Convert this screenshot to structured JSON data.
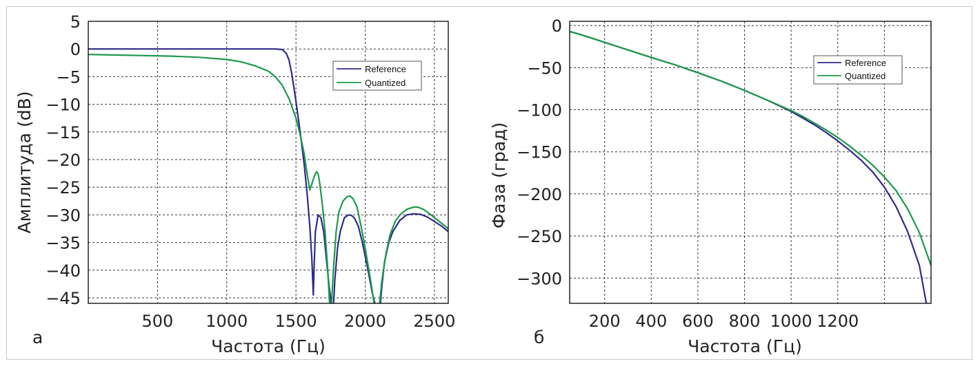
{
  "chart_data": [
    {
      "type": "line",
      "panel_label": "а",
      "xlabel": "Частота (Гц)",
      "ylabel": "Амплитуда (dB)",
      "xlim": [
        0,
        2600
      ],
      "ylim": [
        -46,
        5
      ],
      "xticks": [
        500,
        1000,
        1500,
        2000,
        2500
      ],
      "xtick_labels": [
        "500",
        "1000",
        "1500",
        "2000",
        "2500"
      ],
      "yticks": [
        5,
        0,
        -5,
        -10,
        -15,
        -20,
        -25,
        -30,
        -35,
        -40,
        -45
      ],
      "ytick_labels": [
        "5",
        "0",
        "−5",
        "−10",
        "−15",
        "−20",
        "−25",
        "−30",
        "−35",
        "−40",
        "−45"
      ],
      "grid": true,
      "legend_position": "top-right",
      "series": [
        {
          "name": "Reference",
          "color": "#2e2a8a",
          "x": [
            0,
            200,
            400,
            600,
            800,
            1000,
            1200,
            1350,
            1400,
            1430,
            1450,
            1470,
            1500,
            1530,
            1560,
            1580,
            1600,
            1615,
            1625,
            1630,
            1640,
            1660,
            1680,
            1700,
            1720,
            1740,
            1760,
            1770,
            1780,
            1800,
            1820,
            1850,
            1880,
            1900,
            1920,
            1950,
            1980,
            2020,
            2050,
            2080,
            2100,
            2110,
            2120,
            2140,
            2170,
            2200,
            2250,
            2300,
            2350,
            2400,
            2450,
            2500,
            2550,
            2600
          ],
          "y": [
            0,
            0,
            0,
            0,
            0,
            0,
            0,
            0,
            -0.1,
            -0.8,
            -2,
            -4.5,
            -9.5,
            -15,
            -21,
            -26,
            -32,
            -38,
            -44.5,
            -40,
            -33,
            -30,
            -30.5,
            -33,
            -38,
            -43,
            -47,
            -47,
            -42,
            -36,
            -33,
            -30.5,
            -30,
            -30.1,
            -30.5,
            -32,
            -35,
            -40,
            -44,
            -47,
            -47,
            -46,
            -43,
            -38.5,
            -35,
            -33,
            -31,
            -30,
            -29.8,
            -29.9,
            -30.4,
            -31.2,
            -32,
            -33
          ]
        },
        {
          "name": "Quantized",
          "color": "#1a9a4a",
          "x": [
            0,
            200,
            400,
            600,
            800,
            1000,
            1100,
            1200,
            1300,
            1350,
            1400,
            1450,
            1500,
            1530,
            1560,
            1580,
            1600,
            1620,
            1640,
            1650,
            1660,
            1670,
            1690,
            1710,
            1730,
            1745,
            1755,
            1770,
            1790,
            1810,
            1840,
            1870,
            1890,
            1910,
            1940,
            1970,
            2000,
            2040,
            2070,
            2085,
            2100,
            2120,
            2150,
            2180,
            2220,
            2260,
            2300,
            2350,
            2380,
            2420,
            2460,
            2500,
            2550,
            2600
          ],
          "y": [
            -1,
            -1.1,
            -1.2,
            -1.3,
            -1.5,
            -1.9,
            -2.3,
            -3,
            -4,
            -5,
            -6.5,
            -9,
            -12.5,
            -15.5,
            -19,
            -22.5,
            -25.5,
            -24,
            -22.5,
            -22.2,
            -22.6,
            -24,
            -28,
            -33,
            -40,
            -47,
            -47,
            -40,
            -33,
            -29.5,
            -27.5,
            -26.7,
            -26.6,
            -27,
            -28.5,
            -32,
            -36,
            -42,
            -47,
            -47,
            -47,
            -42,
            -37,
            -33.5,
            -31,
            -29.8,
            -29,
            -28.6,
            -28.6,
            -29,
            -29.7,
            -30.5,
            -31.5,
            -32.5
          ]
        }
      ]
    },
    {
      "type": "line",
      "panel_label": "б",
      "xlabel": "Частота (Гц)",
      "ylabel": "Фаза (град)",
      "xlim": [
        50,
        1600
      ],
      "ylim": [
        -330,
        5
      ],
      "xticks": [
        200,
        400,
        600,
        800,
        1000,
        1200
      ],
      "xtick_labels": [
        "200",
        "400",
        "600",
        "800",
        "1000",
        "1200"
      ],
      "xgrid_extra": [
        1400
      ],
      "yticks": [
        0,
        -50,
        -100,
        -150,
        -200,
        -250,
        -300
      ],
      "ytick_labels": [
        "0",
        "−50",
        "−100",
        "−150",
        "−200",
        "−250",
        "−300"
      ],
      "grid": true,
      "legend_position": "top-right",
      "series": [
        {
          "name": "Reference",
          "color": "#2e2a8a",
          "x": [
            50,
            100,
            200,
            300,
            400,
            500,
            600,
            700,
            800,
            900,
            1000,
            1050,
            1100,
            1150,
            1200,
            1250,
            1300,
            1350,
            1400,
            1450,
            1500,
            1550,
            1580
          ],
          "y": [
            -7,
            -11,
            -20,
            -29,
            -38,
            -46.5,
            -56,
            -66,
            -77,
            -89,
            -102,
            -110,
            -118,
            -127,
            -137,
            -148,
            -160,
            -174,
            -192,
            -215,
            -245,
            -285,
            -330
          ]
        },
        {
          "name": "Quantized",
          "color": "#1a9a4a",
          "x": [
            50,
            100,
            200,
            300,
            400,
            500,
            600,
            700,
            800,
            900,
            1000,
            1050,
            1100,
            1150,
            1200,
            1250,
            1300,
            1350,
            1400,
            1450,
            1500,
            1550,
            1600
          ],
          "y": [
            -7,
            -11,
            -20,
            -29,
            -38,
            -46.5,
            -56,
            -66,
            -77,
            -89,
            -101,
            -108,
            -116,
            -124,
            -133,
            -143,
            -154,
            -166,
            -180,
            -196,
            -218,
            -246,
            -285
          ]
        }
      ]
    }
  ]
}
